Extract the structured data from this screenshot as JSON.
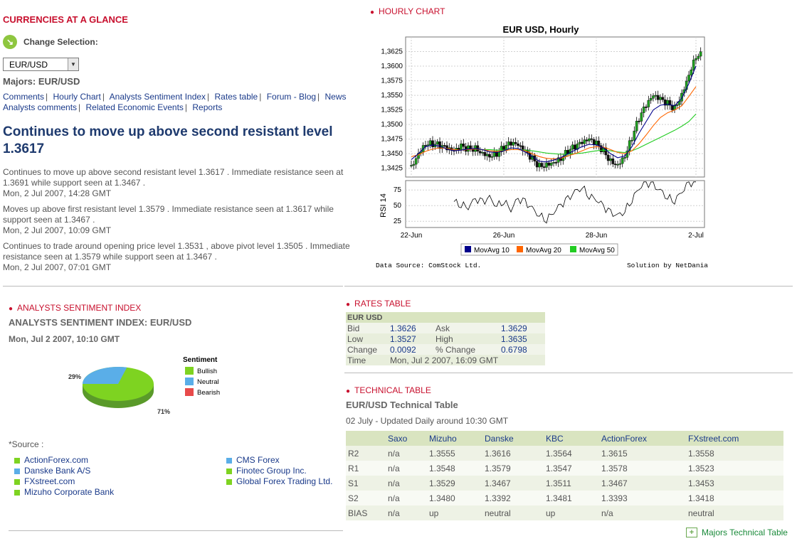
{
  "glance": {
    "title": "CURRENCIES AT A GLANCE",
    "change_selection": "Change Selection:",
    "pair_value": "EUR/USD",
    "majors_label": "Majors: EUR/USD",
    "nav_links": [
      "Comments",
      "Hourly Chart",
      "Analysts Sentiment Index",
      "Rates table",
      "Forum - Blog",
      "News",
      "Analysts comments",
      "Related Economic Events",
      "Reports"
    ]
  },
  "headline": "Continues to move up above second resistant level 1.3617",
  "news": [
    {
      "text": "Continues to move up above second resistant level 1.3617 . Immediate resistance seen at 1.3691 while support seen at 1.3467 .",
      "date": "Mon, 2 Jul 2007, 14:28 GMT"
    },
    {
      "text": "Moves up above first resistant level 1.3579 . Immediate resistance seen at 1.3617 while support seen at 1.3467 .",
      "date": "Mon, 2 Jul 2007, 10:09 GMT"
    },
    {
      "text": "Continues to trade around opening price level 1.3531 , above pivot level 1.3505 . Immediate resistance seen at 1.3579 while support seen at 1.3467 .",
      "date": "Mon, 2 Jul 2007, 07:01 GMT"
    }
  ],
  "hourly": {
    "section_title": "HOURLY CHART",
    "chart_title": "EUR USD, Hourly",
    "rsi_label": "RSI 14",
    "data_source": "Data Source: ComStock Ltd.",
    "solution": "Solution by NetDania",
    "legend": [
      {
        "name": "MovAvg 10",
        "color": "#00008b"
      },
      {
        "name": "MovAvg 20",
        "color": "#ff6600"
      },
      {
        "name": "MovAvg 50",
        "color": "#22cc22"
      }
    ]
  },
  "chart_data": {
    "type": "candlestick",
    "title": "EUR USD, Hourly",
    "x_ticks": [
      "22-Jun",
      "26-Jun",
      "28-Jun",
      "2-Jul"
    ],
    "y_ticks": [
      "1,3625",
      "1,3600",
      "1,3575",
      "1,3550",
      "1,3525",
      "1,3500",
      "1,3475",
      "1,3450",
      "1,3425"
    ],
    "ylim": [
      1.341,
      1.365
    ],
    "rsi_ticks": [
      "75",
      "50",
      "25"
    ],
    "rsi_ylim": [
      15,
      90
    ],
    "price_path": [
      1.343,
      1.3455,
      1.347,
      1.3468,
      1.3462,
      1.3455,
      1.345,
      1.346,
      1.3458,
      1.3462,
      1.3455,
      1.345,
      1.3452,
      1.346,
      1.3465,
      1.346,
      1.345,
      1.344,
      1.343,
      1.3435,
      1.344,
      1.3445,
      1.3455,
      1.346,
      1.3465,
      1.347,
      1.3465,
      1.3455,
      1.344,
      1.3435,
      1.345,
      1.348,
      1.351,
      1.353,
      1.3545,
      1.354,
      1.3535,
      1.353,
      1.3555,
      1.359,
      1.362
    ],
    "ma10": [
      1.344,
      1.345,
      1.3462,
      1.3465,
      1.3463,
      1.3458,
      1.3455,
      1.3456,
      1.3458,
      1.3459,
      1.3457,
      1.3453,
      1.3452,
      1.3455,
      1.346,
      1.3459,
      1.3453,
      1.3445,
      1.3437,
      1.3436,
      1.3439,
      1.3443,
      1.345,
      1.3456,
      1.3462,
      1.3466,
      1.3465,
      1.346,
      1.345,
      1.3443,
      1.3446,
      1.3462,
      1.3485,
      1.3505,
      1.3525,
      1.3533,
      1.3535,
      1.3532,
      1.3545,
      1.357,
      1.36
    ],
    "ma20": [
      1.3445,
      1.3448,
      1.3454,
      1.3458,
      1.346,
      1.3459,
      1.3457,
      1.3456,
      1.3457,
      1.3458,
      1.3457,
      1.3455,
      1.3454,
      1.3455,
      1.3457,
      1.3457,
      1.3455,
      1.345,
      1.3445,
      1.3442,
      1.3441,
      1.3442,
      1.3446,
      1.345,
      1.3455,
      1.346,
      1.3462,
      1.3461,
      1.3457,
      1.3452,
      1.345,
      1.3455,
      1.3467,
      1.3482,
      1.3498,
      1.3512,
      1.352,
      1.3525,
      1.3532,
      1.3548,
      1.3565
    ],
    "ma50": [
      null,
      null,
      null,
      null,
      null,
      null,
      null,
      null,
      1.3458,
      1.3458,
      1.3457,
      1.3457,
      1.3456,
      1.3456,
      1.3457,
      1.3457,
      1.3456,
      1.3455,
      1.3453,
      1.3451,
      1.345,
      1.3449,
      1.3449,
      1.345,
      1.3451,
      1.3453,
      1.3455,
      1.3456,
      1.3455,
      1.3453,
      1.3452,
      1.3455,
      1.346,
      1.3466,
      1.3472,
      1.3478,
      1.3484,
      1.349,
      1.3497,
      1.3505,
      1.3518
    ],
    "rsi": [
      null,
      null,
      null,
      null,
      null,
      null,
      57,
      52,
      48,
      60,
      55,
      62,
      50,
      58,
      44,
      60,
      55,
      45,
      35,
      28,
      40,
      50,
      60,
      72,
      80,
      66,
      60,
      48,
      38,
      34,
      42,
      60,
      78,
      86,
      82,
      74,
      64,
      58,
      72,
      85,
      88
    ]
  },
  "sentiment": {
    "section_title": "ANALYSTS SENTIMENT INDEX",
    "subtitle": "ANALYSTS SENTIMENT INDEX: EUR/USD",
    "date": "Mon, Jul 2 2007, 10:10 GMT",
    "legend_title": "Sentiment",
    "legend": [
      {
        "name": "Bullish",
        "color": "#7ed321"
      },
      {
        "name": "Neutral",
        "color": "#5aaee8"
      },
      {
        "name": "Bearish",
        "color": "#e84a4a"
      }
    ],
    "pie": [
      {
        "label": "71%",
        "value": 71
      },
      {
        "label": "29%",
        "value": 29
      }
    ],
    "source_label": "*Source :",
    "sources_left": [
      "ActionForex.com",
      "Danske Bank A/S",
      "FXstreet.com",
      "Mizuho Corporate Bank"
    ],
    "sources_right": [
      "CMS Forex",
      "Finotec Group Inc.",
      "Global Forex Trading Ltd."
    ],
    "source_colors_left": [
      "#7ed321",
      "#5aaee8",
      "#7ed321",
      "#7ed321"
    ],
    "source_colors_right": [
      "#5aaee8",
      "#7ed321",
      "#7ed321"
    ]
  },
  "rates": {
    "section_title": "RATES TABLE",
    "pair": "EUR USD",
    "rows": [
      [
        "Bid",
        "1.3626",
        "Ask",
        "1.3629"
      ],
      [
        "Low",
        "1.3527",
        "High",
        "1.3635"
      ],
      [
        "Change",
        "0.0092",
        "% Change",
        "0.6798"
      ]
    ],
    "time_label": "Time",
    "time_value": "Mon, Jul 2 2007, 16:09 GMT"
  },
  "technical": {
    "section_title": "TECHNICAL TABLE",
    "subtitle": "EUR/USD Technical Table",
    "updated": "02 July - Updated Daily around 10:30 GMT",
    "headers": [
      "",
      "Saxo",
      "Mizuho",
      "Danske",
      "KBC",
      "ActionForex",
      "FXstreet.com"
    ],
    "rows": [
      [
        "R2",
        "n/a",
        "1.3555",
        "1.3616",
        "1.3564",
        "1.3615",
        "1.3558"
      ],
      [
        "R1",
        "n/a",
        "1.3548",
        "1.3579",
        "1.3547",
        "1.3578",
        "1.3523"
      ],
      [
        "S1",
        "n/a",
        "1.3529",
        "1.3467",
        "1.3511",
        "1.3467",
        "1.3453"
      ],
      [
        "S2",
        "n/a",
        "1.3480",
        "1.3392",
        "1.3481",
        "1.3393",
        "1.3418"
      ],
      [
        "BIAS",
        "n/a",
        "up",
        "neutral",
        "up",
        "n/a",
        "neutral"
      ]
    ],
    "majors_link": "Majors Technical Table"
  }
}
